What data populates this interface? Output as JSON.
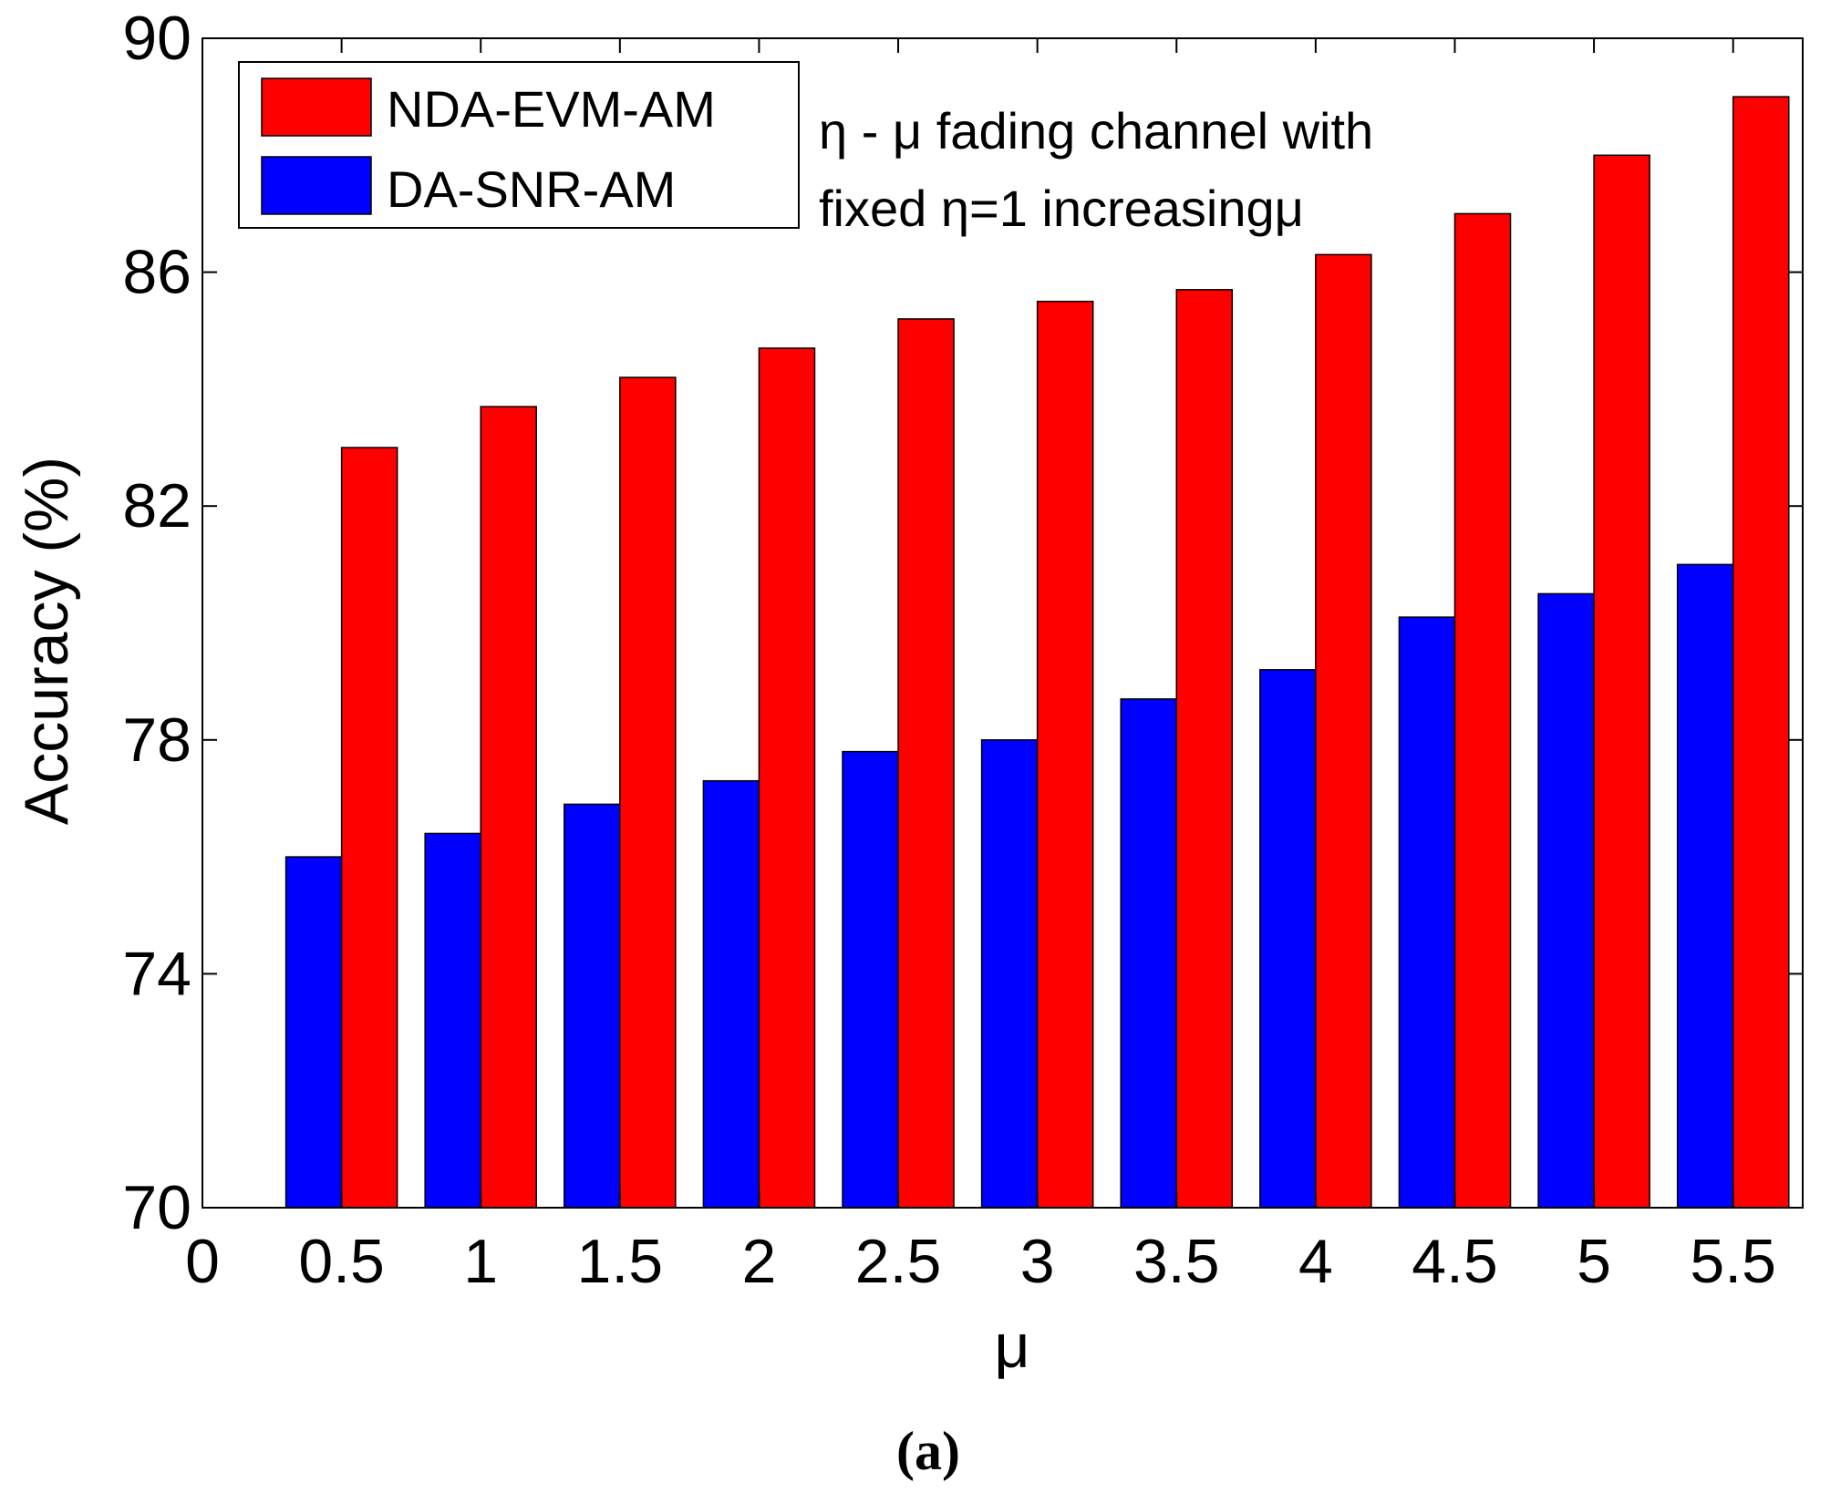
{
  "chart_data": {
    "type": "bar",
    "title": "",
    "xlabel": "μ",
    "ylabel": "Accuracy (%)",
    "categories": [
      "0.5",
      "1",
      "1.5",
      "2",
      "2.5",
      "3",
      "3.5",
      "4",
      "4.5",
      "5",
      "5.5"
    ],
    "x_ticks": [
      "0",
      "0.5",
      "1",
      "1.5",
      "2",
      "2.5",
      "3",
      "3.5",
      "4",
      "4.5",
      "5",
      "5.5"
    ],
    "y_ticks": [
      "70",
      "74",
      "78",
      "82",
      "86",
      "90"
    ],
    "ylim": [
      70,
      90
    ],
    "xlim": [
      0,
      5.75
    ],
    "grid": false,
    "legend_position": "top-left",
    "series": [
      {
        "name": "DA-SNR-AM",
        "color": "#0000ff",
        "values": [
          76.0,
          76.4,
          76.9,
          77.3,
          77.8,
          78.0,
          78.7,
          79.2,
          80.1,
          80.5,
          81.0
        ]
      },
      {
        "name": "NDA-EVM-AM",
        "color": "#ff0000",
        "values": [
          83.0,
          83.7,
          84.2,
          84.7,
          85.2,
          85.5,
          85.7,
          86.3,
          87.0,
          88.0,
          89.0
        ]
      }
    ],
    "legend_order": [
      "NDA-EVM-AM",
      "DA-SNR-AM"
    ],
    "annotation_lines": [
      "η - μ fading channel with",
      "fixed η=1 increasingμ"
    ],
    "caption": "(a)"
  }
}
